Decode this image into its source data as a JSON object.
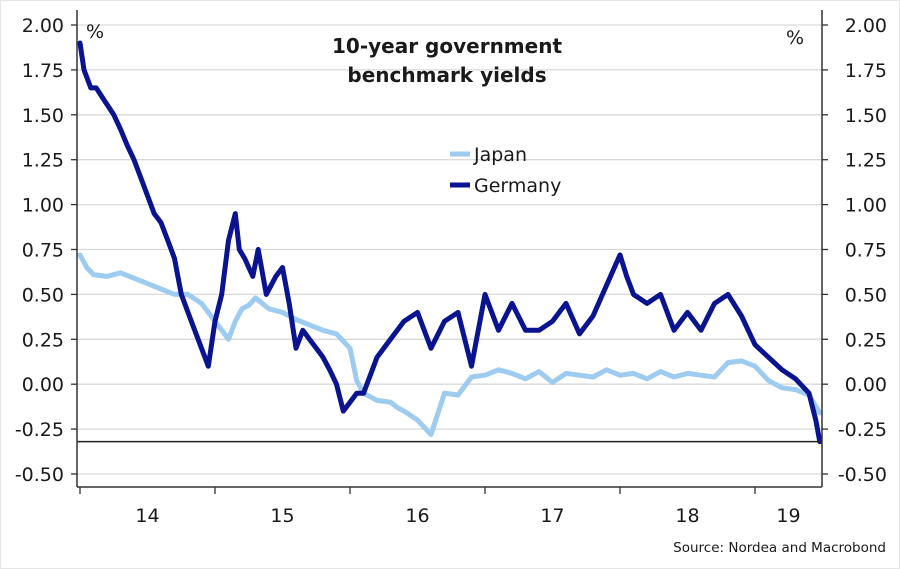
{
  "chart_data": {
    "type": "line",
    "title": "10-year government benchmark yields",
    "title_lines": [
      "10-year government",
      "benchmark yields"
    ],
    "unit_label_left": "%",
    "unit_label_right": "%",
    "source": "Source: Nordea and Macrobond",
    "xlabel": "",
    "ylabel": "%",
    "x_range": [
      2014.0,
      2019.5
    ],
    "ylim": [
      -0.55,
      2.0
    ],
    "y_ticks": [
      2.0,
      1.75,
      1.5,
      1.25,
      1.0,
      0.75,
      0.5,
      0.25,
      0.0,
      -0.25,
      -0.5
    ],
    "y_tick_labels": [
      "2.00",
      "1.75",
      "1.50",
      "1.25",
      "1.00",
      "0.75",
      "0.50",
      "0.25",
      "0.00",
      "-0.25",
      "-0.50"
    ],
    "x_ticks": [
      2014.0,
      2015.0,
      2016.0,
      2017.0,
      2018.0,
      2019.0
    ],
    "x_tick_labels": [
      "14",
      "15",
      "16",
      "17",
      "18",
      "19"
    ],
    "reference_line": -0.32,
    "grid": true,
    "legend": {
      "placement": "top-center",
      "entries": [
        "Japan",
        "Germany"
      ]
    },
    "series": [
      {
        "name": "Japan",
        "color": "#9ecbf0",
        "x": [
          2014.0,
          2014.05,
          2014.1,
          2014.2,
          2014.3,
          2014.4,
          2014.5,
          2014.6,
          2014.7,
          2014.8,
          2014.9,
          2015.0,
          2015.05,
          2015.1,
          2015.15,
          2015.2,
          2015.25,
          2015.3,
          2015.4,
          2015.5,
          2015.6,
          2015.7,
          2015.8,
          2015.9,
          2016.0,
          2016.05,
          2016.1,
          2016.2,
          2016.3,
          2016.35,
          2016.4,
          2016.5,
          2016.6,
          2016.7,
          2016.8,
          2016.9,
          2017.0,
          2017.1,
          2017.2,
          2017.3,
          2017.4,
          2017.5,
          2017.6,
          2017.7,
          2017.8,
          2017.9,
          2018.0,
          2018.1,
          2018.2,
          2018.3,
          2018.4,
          2018.5,
          2018.6,
          2018.7,
          2018.8,
          2018.9,
          2019.0,
          2019.1,
          2019.2,
          2019.3,
          2019.4,
          2019.48
        ],
        "values": [
          0.72,
          0.65,
          0.61,
          0.6,
          0.62,
          0.59,
          0.56,
          0.53,
          0.5,
          0.5,
          0.45,
          0.35,
          0.3,
          0.25,
          0.35,
          0.42,
          0.44,
          0.48,
          0.42,
          0.4,
          0.36,
          0.33,
          0.3,
          0.28,
          0.2,
          0.02,
          -0.05,
          -0.09,
          -0.1,
          -0.13,
          -0.15,
          -0.2,
          -0.28,
          -0.05,
          -0.06,
          0.04,
          0.05,
          0.08,
          0.06,
          0.03,
          0.07,
          0.01,
          0.06,
          0.05,
          0.04,
          0.08,
          0.05,
          0.06,
          0.03,
          0.07,
          0.04,
          0.06,
          0.05,
          0.04,
          0.12,
          0.13,
          0.1,
          0.02,
          -0.02,
          -0.03,
          -0.06,
          -0.16
        ]
      },
      {
        "name": "Germany",
        "color": "#0a1490",
        "x": [
          2014.0,
          2014.03,
          2014.08,
          2014.12,
          2014.18,
          2014.25,
          2014.3,
          2014.35,
          2014.4,
          2014.45,
          2014.5,
          2014.55,
          2014.6,
          2014.65,
          2014.7,
          2014.75,
          2014.8,
          2014.85,
          2014.9,
          2014.95,
          2015.0,
          2015.05,
          2015.1,
          2015.15,
          2015.18,
          2015.22,
          2015.28,
          2015.32,
          2015.38,
          2015.45,
          2015.5,
          2015.55,
          2015.6,
          2015.65,
          2015.7,
          2015.75,
          2015.8,
          2015.85,
          2015.9,
          2015.95,
          2016.0,
          2016.05,
          2016.1,
          2016.15,
          2016.2,
          2016.3,
          2016.4,
          2016.5,
          2016.6,
          2016.7,
          2016.8,
          2016.9,
          2017.0,
          2017.1,
          2017.2,
          2017.3,
          2017.4,
          2017.5,
          2017.6,
          2017.7,
          2017.8,
          2017.9,
          2018.0,
          2018.05,
          2018.1,
          2018.2,
          2018.3,
          2018.4,
          2018.5,
          2018.6,
          2018.7,
          2018.8,
          2018.9,
          2019.0,
          2019.1,
          2019.2,
          2019.3,
          2019.4,
          2019.45,
          2019.48
        ],
        "values": [
          1.9,
          1.75,
          1.65,
          1.65,
          1.58,
          1.5,
          1.42,
          1.33,
          1.25,
          1.15,
          1.05,
          0.95,
          0.9,
          0.8,
          0.7,
          0.5,
          0.4,
          0.3,
          0.2,
          0.1,
          0.35,
          0.5,
          0.8,
          0.95,
          0.75,
          0.7,
          0.6,
          0.75,
          0.5,
          0.6,
          0.65,
          0.45,
          0.2,
          0.3,
          0.25,
          0.2,
          0.15,
          0.08,
          0.0,
          -0.15,
          -0.1,
          -0.05,
          -0.05,
          0.05,
          0.15,
          0.25,
          0.35,
          0.4,
          0.2,
          0.35,
          0.4,
          0.1,
          0.5,
          0.3,
          0.45,
          0.3,
          0.3,
          0.35,
          0.45,
          0.28,
          0.38,
          0.55,
          0.72,
          0.6,
          0.5,
          0.45,
          0.5,
          0.3,
          0.4,
          0.3,
          0.45,
          0.5,
          0.38,
          0.22,
          0.15,
          0.08,
          0.03,
          -0.05,
          -0.2,
          -0.32
        ]
      }
    ]
  }
}
